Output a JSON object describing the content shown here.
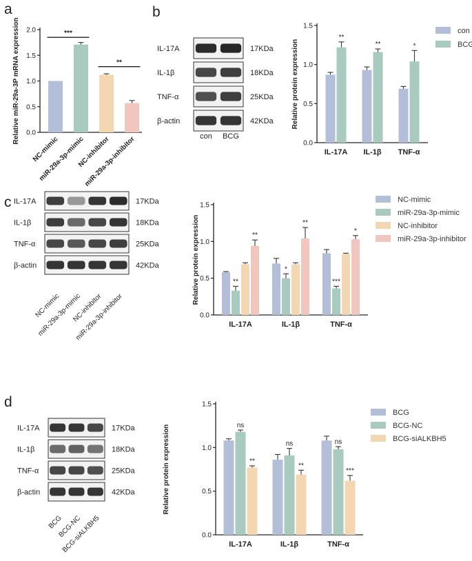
{
  "colors": {
    "blue": "#b3bfd8",
    "green": "#a9cbbf",
    "orange": "#f3d6b2",
    "pink": "#f1c6bf",
    "error": "#333333"
  },
  "panels": {
    "a": {
      "label": "a"
    },
    "b": {
      "label": "b",
      "blot_proteins": [
        "IL-17A",
        "IL-1β",
        "TNF-α",
        "β-actin"
      ],
      "blot_sizes": [
        "17KDa",
        "18KDa",
        "25KDa",
        "42KDa"
      ],
      "blot_lanes": [
        "con",
        "BCG"
      ]
    },
    "c": {
      "label": "c",
      "blot_proteins": [
        "IL-17A",
        "IL-1β",
        "TNF-α",
        "β-actin"
      ],
      "blot_sizes": [
        "17KDa",
        "18KDa",
        "25KDa",
        "42KDa"
      ],
      "blot_lanes": [
        "NC-mimic",
        "miR-29a-3p-mimic",
        "NC-inhibitor",
        "miR-29a-3p-inhibitor"
      ]
    },
    "d": {
      "label": "d",
      "blot_proteins": [
        "IL-17A",
        "IL-1β",
        "TNF-α",
        "β-actin"
      ],
      "blot_sizes": [
        "17KDa",
        "18KDa",
        "25KDa",
        "42KDa"
      ],
      "blot_lanes": [
        "BCG",
        "BCG-NC",
        "BCG-siALKBH5"
      ]
    }
  },
  "chart_data": [
    {
      "id": "a",
      "type": "bar",
      "ylabel": "Relative miR-29a-3P mRNA expression",
      "ylim": [
        0,
        2.0
      ],
      "yticks": [
        "0.0",
        "0.5",
        "1.0",
        "1.5",
        "2.0"
      ],
      "categories": [
        "NC-mimic",
        "miR-29a-3p-mimic",
        "NC-inhibitor",
        "miR-29a-3p-inhibitor"
      ],
      "values": [
        1.0,
        1.71,
        1.12,
        0.57
      ],
      "errors": [
        0,
        0.04,
        0.02,
        0.05
      ],
      "bar_colors": [
        "blue",
        "green",
        "orange",
        "pink"
      ],
      "brackets": [
        {
          "from": 0,
          "to": 1,
          "y": 1.85,
          "text": "***"
        },
        {
          "from": 2,
          "to": 3,
          "y": 1.28,
          "text": "**"
        }
      ]
    },
    {
      "id": "b",
      "type": "bar",
      "ylabel": "Relative protein expression",
      "ylim": [
        0,
        1.5
      ],
      "yticks": [
        "0.0",
        "0.5",
        "1.0",
        "1.5"
      ],
      "categories": [
        "IL-17A",
        "IL-1β",
        "TNF-α"
      ],
      "series": [
        {
          "name": "con",
          "color": "blue",
          "values": [
            0.87,
            0.93,
            0.69
          ],
          "errors": [
            0.03,
            0.04,
            0.03
          ],
          "sig": [
            "",
            "",
            ""
          ]
        },
        {
          "name": "BCG",
          "color": "green",
          "values": [
            1.22,
            1.16,
            1.04
          ],
          "errors": [
            0.07,
            0.04,
            0.14
          ],
          "sig": [
            "**",
            "**",
            "*"
          ]
        }
      ]
    },
    {
      "id": "c",
      "type": "bar",
      "ylabel": "Relative protein expression",
      "ylim": [
        0,
        1.5
      ],
      "yticks": [
        "0.0",
        "0.5",
        "1.0",
        "1.5"
      ],
      "categories": [
        "IL-17A",
        "IL-1β",
        "TNF-α"
      ],
      "series": [
        {
          "name": "NC-mimic",
          "color": "blue",
          "values": [
            0.58,
            0.7,
            0.84
          ],
          "errors": [
            0.01,
            0.07,
            0.05
          ],
          "sig": [
            "",
            "",
            ""
          ]
        },
        {
          "name": "miR-29a-3p-mimic",
          "color": "green",
          "values": [
            0.33,
            0.5,
            0.36
          ],
          "errors": [
            0.06,
            0.06,
            0.03
          ],
          "sig": [
            "**",
            "*",
            "***"
          ]
        },
        {
          "name": "NC-inhibitor",
          "color": "orange",
          "values": [
            0.69,
            0.69,
            0.83
          ],
          "errors": [
            0.02,
            0.02,
            0.01
          ],
          "sig": [
            "",
            "",
            ""
          ]
        },
        {
          "name": "miR-29a-3p-inhibitor",
          "color": "pink",
          "values": [
            0.94,
            1.04,
            1.03
          ],
          "errors": [
            0.08,
            0.15,
            0.05
          ],
          "sig": [
            "**",
            "**",
            "*"
          ]
        }
      ]
    },
    {
      "id": "d",
      "type": "bar",
      "ylabel": "Relative protein expression",
      "ylim": [
        0,
        1.5
      ],
      "yticks": [
        "0.0",
        "0.5",
        "1.0",
        "1.5"
      ],
      "categories": [
        "IL-17A",
        "IL-1β",
        "TNF-α"
      ],
      "series": [
        {
          "name": "BCG",
          "color": "blue",
          "values": [
            1.08,
            0.86,
            1.08
          ],
          "errors": [
            0.02,
            0.06,
            0.05
          ],
          "sig": [
            "",
            "",
            ""
          ]
        },
        {
          "name": "BCG-NC",
          "color": "green",
          "values": [
            1.18,
            0.91,
            0.98
          ],
          "errors": [
            0.02,
            0.08,
            0.03
          ],
          "sig": [
            "ns",
            "ns",
            "ns"
          ]
        },
        {
          "name": "BCG-siALKBH5",
          "color": "orange",
          "values": [
            0.77,
            0.69,
            0.62
          ],
          "errors": [
            0.02,
            0.05,
            0.06
          ],
          "sig": [
            "**",
            "**",
            "***"
          ]
        }
      ]
    }
  ]
}
